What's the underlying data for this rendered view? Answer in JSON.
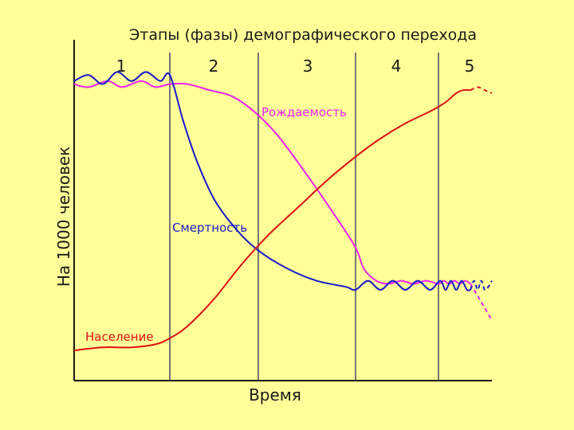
{
  "chart_data": {
    "type": "line",
    "title": "Этапы (фазы) демографического перехода",
    "xlabel": "Время",
    "ylabel": "На 1000 человек",
    "stages": [
      "1",
      "2",
      "3",
      "4",
      "5"
    ],
    "stage_boundaries": [
      0,
      1,
      2,
      3,
      4,
      4.9,
      5.5
    ],
    "xlim": [
      0,
      5.5
    ],
    "ylim": [
      0,
      100
    ],
    "grid": false,
    "legend": "inline labels",
    "series": [
      {
        "name": "Рождаемость",
        "color": "#ee22ee",
        "x": [
          0,
          0.15,
          0.35,
          0.5,
          0.7,
          0.85,
          1.0,
          1.2,
          1.45,
          1.7,
          1.95,
          2.2,
          2.5,
          2.8,
          3.0,
          3.1,
          3.25,
          3.4,
          3.55,
          3.7,
          3.85,
          4.0,
          4.15,
          4.3,
          4.45,
          4.6,
          4.75,
          4.9
        ],
        "y": [
          98,
          97,
          99,
          97,
          99,
          97,
          98,
          98,
          96,
          94,
          89,
          81,
          68,
          54,
          44,
          37,
          33,
          32,
          33,
          32,
          33,
          32,
          33,
          32,
          33,
          32,
          33,
          32
        ]
      },
      {
        "name": "Смертность",
        "color": "#1a1acc",
        "x": [
          0,
          0.15,
          0.3,
          0.45,
          0.6,
          0.75,
          0.9,
          1.0,
          1.15,
          1.3,
          1.5,
          1.75,
          2.0,
          2.3,
          2.6,
          2.9,
          3.0,
          3.15,
          3.3,
          3.45,
          3.6,
          3.75,
          3.9,
          4.05,
          4.2,
          4.35,
          4.5,
          4.65,
          4.8,
          4.9
        ],
        "y": [
          99,
          101,
          98,
          102,
          99,
          102,
          99,
          101,
          86,
          73,
          60,
          50,
          43,
          37,
          33,
          31,
          30,
          33,
          30,
          33,
          30,
          33,
          30,
          33,
          30,
          33,
          30,
          33,
          30,
          30
        ]
      },
      {
        "name": "Население",
        "color": "#dd1111",
        "x": [
          0,
          0.3,
          0.6,
          0.85,
          1.0,
          1.2,
          1.5,
          1.8,
          2.1,
          2.4,
          2.7,
          3.0,
          3.3,
          3.6,
          3.9,
          4.2,
          4.5,
          4.7,
          4.9
        ],
        "y": [
          10,
          11,
          11,
          12,
          14,
          18,
          27,
          38,
          48,
          57,
          66,
          74,
          80,
          85,
          89,
          92,
          95,
          96,
          96
        ]
      }
    ],
    "projections": [
      {
        "name": "Рождаемость",
        "style": "dashed",
        "x": [
          4.9,
          5.1,
          5.3,
          5.5
        ],
        "y": [
          32,
          28,
          24,
          20
        ]
      },
      {
        "name": "Смертность",
        "style": "dashed",
        "x": [
          4.9,
          5.0,
          5.1,
          5.2,
          5.3,
          5.4,
          5.5
        ],
        "y": [
          30,
          33,
          30,
          33,
          30,
          31,
          33
        ]
      },
      {
        "name": "Население",
        "style": "dashed",
        "x": [
          4.9,
          5.1,
          5.3,
          5.5
        ],
        "y": [
          96,
          97,
          96,
          95
        ]
      }
    ],
    "line_labels": {
      "birth": "Рождаемость",
      "death": "Смертность",
      "population": "Население"
    }
  },
  "colors": {
    "background": "#ffff99",
    "axis": "#1a1a1a",
    "divider": "#777777"
  }
}
